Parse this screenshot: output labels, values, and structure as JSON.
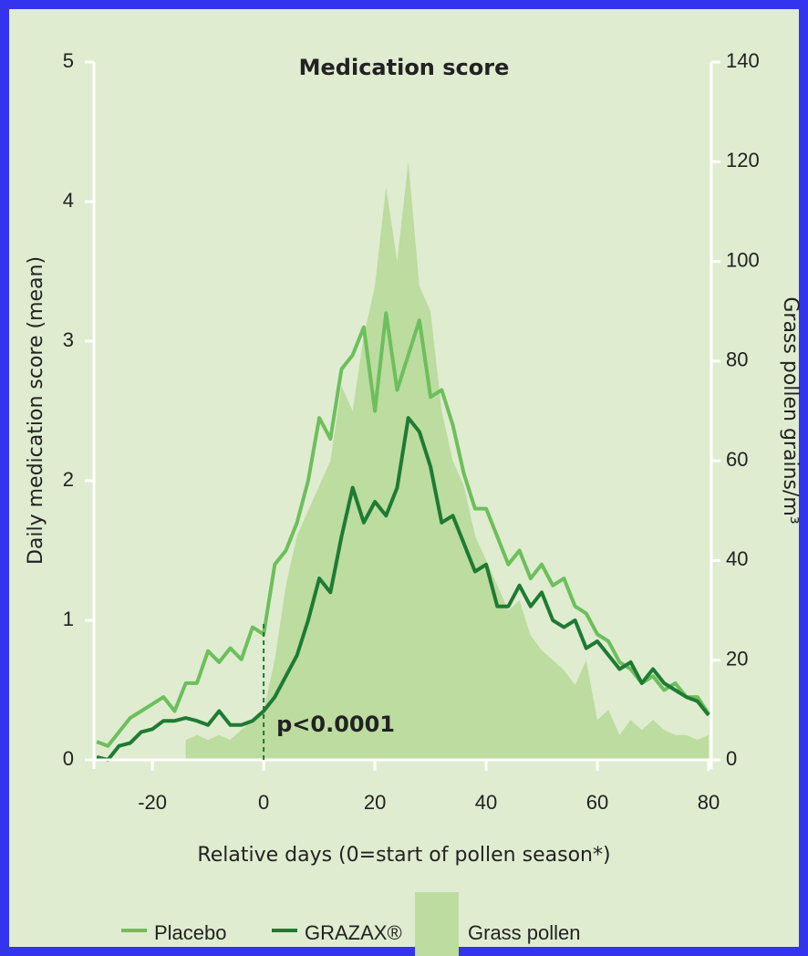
{
  "chart_data": {
    "type": "line",
    "title": "Medication score",
    "x_label": "Relative days (0=start of pollen season*)",
    "y_label": "Daily medication score (mean)",
    "y2_label": "Grass pollen grains/m³",
    "annotation": "p<0.0001",
    "x": [
      -30,
      -28,
      -26,
      -24,
      -22,
      -20,
      -18,
      -16,
      -14,
      -12,
      -10,
      -8,
      -6,
      -4,
      -2,
      0,
      2,
      4,
      6,
      8,
      10,
      12,
      14,
      16,
      18,
      20,
      22,
      24,
      26,
      28,
      30,
      32,
      34,
      36,
      38,
      40,
      42,
      44,
      46,
      48,
      50,
      52,
      54,
      56,
      58,
      60,
      62,
      64,
      66,
      68,
      70,
      72,
      74,
      76,
      78,
      80
    ],
    "series": [
      {
        "name": "Grass pollen",
        "type": "area",
        "axis": "y2",
        "color": "#bcdca0",
        "values": [
          null,
          null,
          null,
          null,
          null,
          null,
          null,
          null,
          4,
          5,
          4,
          5,
          4,
          6,
          8,
          10,
          20,
          35,
          45,
          50,
          55,
          60,
          75,
          70,
          85,
          95,
          115,
          100,
          120,
          95,
          90,
          70,
          60,
          55,
          45,
          40,
          35,
          30,
          32,
          25,
          22,
          20,
          18,
          15,
          20,
          8,
          10,
          5,
          8,
          6,
          8,
          6,
          5,
          5,
          4,
          5
        ]
      },
      {
        "name": "Placebo",
        "type": "line",
        "color": "#6dbf5c",
        "values": [
          0.13,
          0.1,
          0.2,
          0.3,
          0.35,
          0.4,
          0.45,
          0.35,
          0.55,
          0.55,
          0.78,
          0.7,
          0.8,
          0.72,
          0.95,
          0.9,
          1.4,
          1.5,
          1.7,
          2.0,
          2.45,
          2.3,
          2.8,
          2.9,
          3.1,
          2.5,
          3.2,
          2.65,
          2.9,
          3.15,
          2.6,
          2.65,
          2.4,
          2.05,
          1.8,
          1.8,
          1.6,
          1.4,
          1.5,
          1.3,
          1.4,
          1.25,
          1.3,
          1.1,
          1.05,
          0.9,
          0.85,
          0.7,
          0.65,
          0.55,
          0.6,
          0.5,
          0.55,
          0.45,
          0.45,
          0.33
        ]
      },
      {
        "name": "GRAZAX®",
        "type": "line",
        "color": "#1e7b32",
        "values": [
          0.02,
          0,
          0.1,
          0.12,
          0.2,
          0.22,
          0.28,
          0.28,
          0.3,
          0.28,
          0.25,
          0.35,
          0.25,
          0.25,
          0.28,
          0.35,
          0.45,
          0.6,
          0.75,
          1.0,
          1.3,
          1.2,
          1.6,
          1.95,
          1.7,
          1.85,
          1.75,
          1.95,
          2.45,
          2.35,
          2.1,
          1.7,
          1.75,
          1.55,
          1.35,
          1.4,
          1.1,
          1.1,
          1.25,
          1.1,
          1.2,
          1.0,
          0.95,
          1.0,
          0.8,
          0.85,
          0.75,
          0.65,
          0.7,
          0.55,
          0.65,
          0.55,
          0.5,
          0.45,
          0.42,
          0.32
        ]
      }
    ],
    "xlim": [
      -31.5,
      80
    ],
    "xticks": [
      -20,
      0,
      20,
      40,
      60,
      80
    ],
    "ylim": [
      0,
      5
    ],
    "yticks": [
      0,
      1,
      2,
      3,
      4,
      5
    ],
    "y2lim": [
      0,
      140
    ],
    "y2ticks": [
      0,
      20,
      40,
      60,
      80,
      100,
      120,
      140
    ],
    "grid": false
  }
}
